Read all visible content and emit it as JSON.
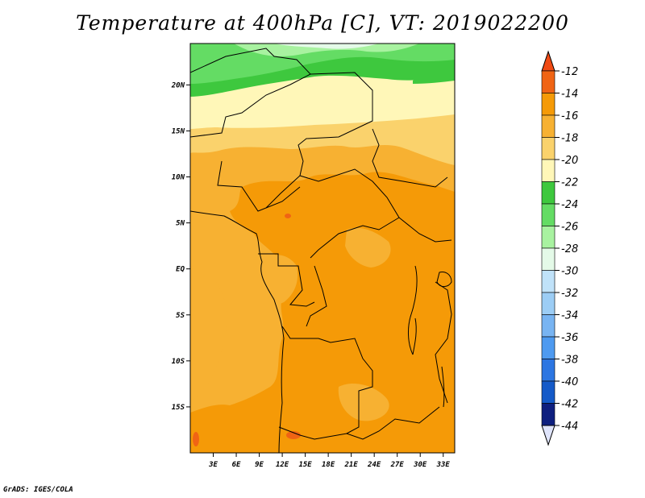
{
  "title": "Temperature at 400hPa [C], VT: 2019022200",
  "footer": "GrADS: IGES/COLA",
  "map": {
    "lon_range": [
      0,
      34.5
    ],
    "lat_range": [
      -20,
      24.5
    ],
    "x_ticks": [
      {
        "value": 3,
        "label": "3E"
      },
      {
        "value": 6,
        "label": "6E"
      },
      {
        "value": 9,
        "label": "9E"
      },
      {
        "value": 12,
        "label": "12E"
      },
      {
        "value": 15,
        "label": "15E"
      },
      {
        "value": 18,
        "label": "18E"
      },
      {
        "value": 21,
        "label": "21E"
      },
      {
        "value": 24,
        "label": "24E"
      },
      {
        "value": 27,
        "label": "27E"
      },
      {
        "value": 30,
        "label": "30E"
      },
      {
        "value": 33,
        "label": "33E"
      }
    ],
    "y_ticks": [
      {
        "value": 20,
        "label": "20N"
      },
      {
        "value": 15,
        "label": "15N"
      },
      {
        "value": 10,
        "label": "10N"
      },
      {
        "value": 5,
        "label": "5N"
      },
      {
        "value": 0,
        "label": "EQ"
      },
      {
        "value": -5,
        "label": "5S"
      },
      {
        "value": -10,
        "label": "10S"
      },
      {
        "value": -15,
        "label": "15S"
      }
    ]
  },
  "colorbar": {
    "levels": [
      "-12",
      "-14",
      "-16",
      "-18",
      "-20",
      "-22",
      "-24",
      "-26",
      "-28",
      "-30",
      "-32",
      "-34",
      "-36",
      "-38",
      "-40",
      "-42",
      "-44"
    ],
    "top_arrow_color": "#f04a14",
    "bottom_arrow_color": "#dfe4fb",
    "colors": [
      "#f06414",
      "#f59a07",
      "#f7b132",
      "#fad26c",
      "#fff7b8",
      "#3ec83e",
      "#64dc64",
      "#a8f2a0",
      "#e4fae8",
      "#c0e2f9",
      "#9ccdf5",
      "#78b4f2",
      "#4e9af0",
      "#2c76e2",
      "#145ac8",
      "#0e1f7f"
    ]
  }
}
